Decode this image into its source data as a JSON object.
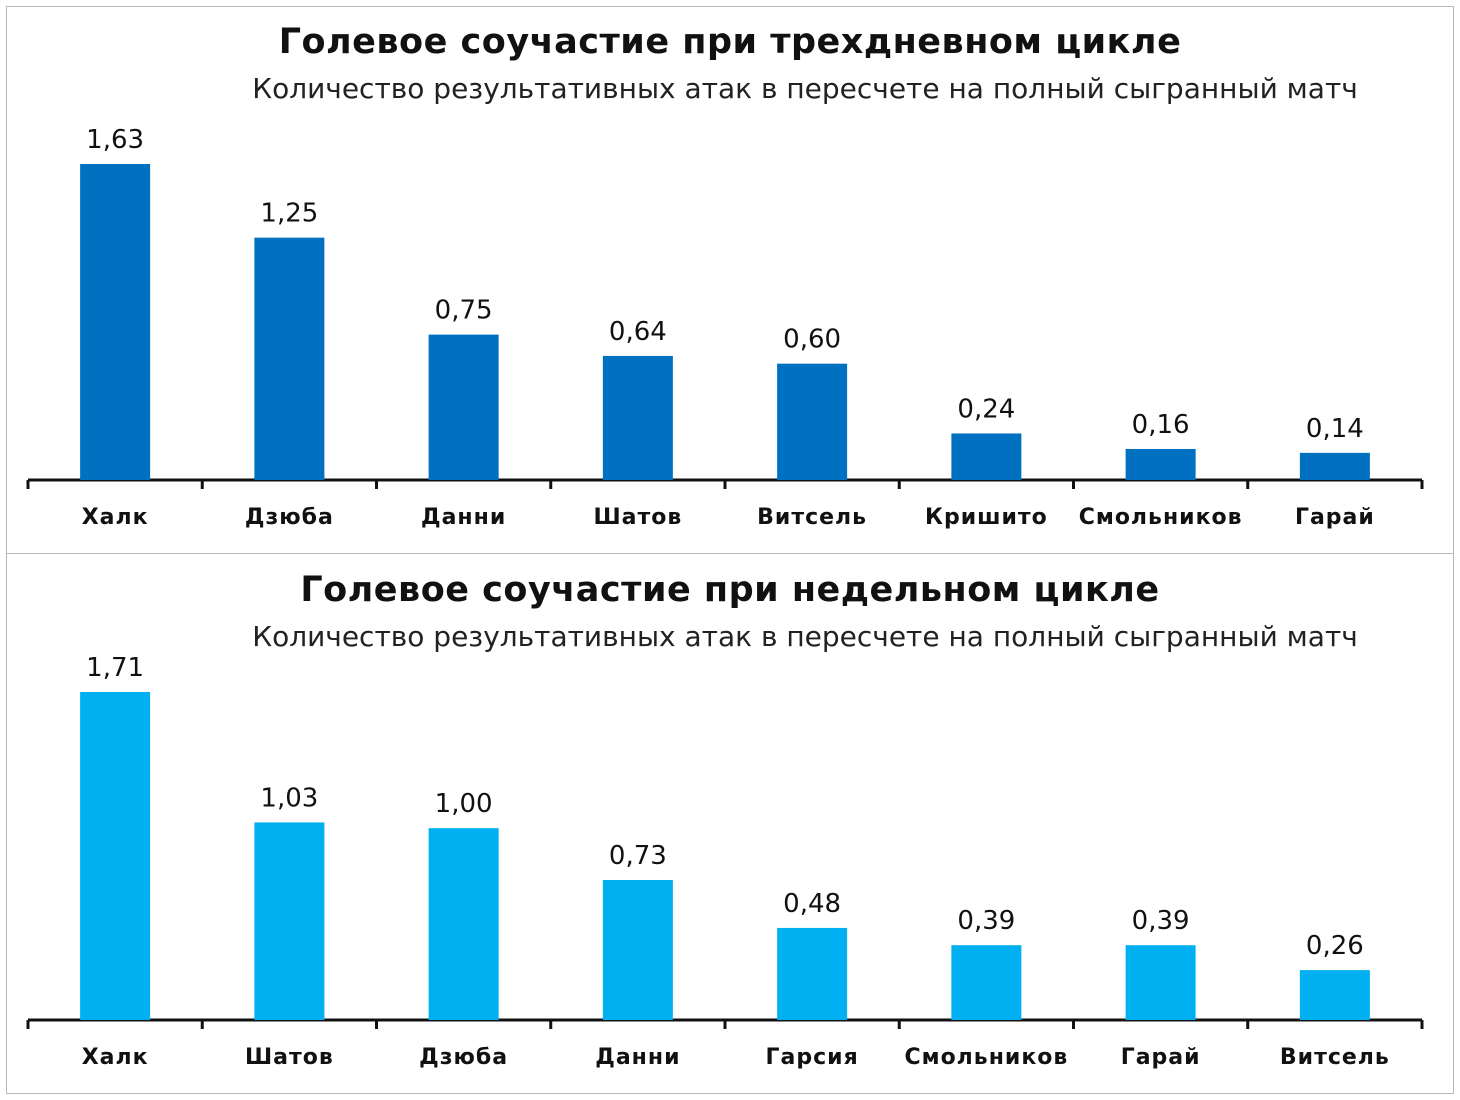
{
  "charts": [
    {
      "title": "Голевое соучастие при трехдневном цикле",
      "subtitle": "Количество результативных атак в пересчете на полный сыгранный матч"
    },
    {
      "title": "Голевое соучастие при недельном цикле",
      "subtitle": "Количество результативных атак в пересчете на полный сыгранный матч"
    }
  ],
  "chart_data": [
    {
      "type": "bar",
      "title": "Голевое соучастие при трехдневном цикле",
      "subtitle": "Количество результативных атак в пересчете на полный сыгранный матч",
      "categories": [
        "Халк",
        "Дзюба",
        "Данни",
        "Шатов",
        "Витсель",
        "Кришито",
        "Смольников",
        "Гарай"
      ],
      "values": [
        1.63,
        1.25,
        0.75,
        0.64,
        0.6,
        0.24,
        0.16,
        0.14
      ],
      "value_labels": [
        "1,63",
        "1,25",
        "0,75",
        "0,64",
        "0,60",
        "0,24",
        "0,16",
        "0,14"
      ],
      "color": "#0070C0",
      "xlabel": "",
      "ylabel": "",
      "ylim": [
        0,
        1.63
      ],
      "grid": false
    },
    {
      "type": "bar",
      "title": "Голевое соучастие при недельном цикле",
      "subtitle": "Количество результативных атак в пересчете на полный сыгранный матч",
      "categories": [
        "Халк",
        "Шатов",
        "Дзюба",
        "Данни",
        "Гарсия",
        "Смольников",
        "Гарай",
        "Витсель"
      ],
      "values": [
        1.71,
        1.03,
        1.0,
        0.73,
        0.48,
        0.39,
        0.39,
        0.26
      ],
      "value_labels": [
        "1,71",
        "1,03",
        "1,00",
        "0,73",
        "0,48",
        "0,39",
        "0,39",
        "0,26"
      ],
      "color": "#00B0F0",
      "xlabel": "",
      "ylabel": "",
      "ylim": [
        0,
        1.71
      ],
      "grid": false
    }
  ]
}
